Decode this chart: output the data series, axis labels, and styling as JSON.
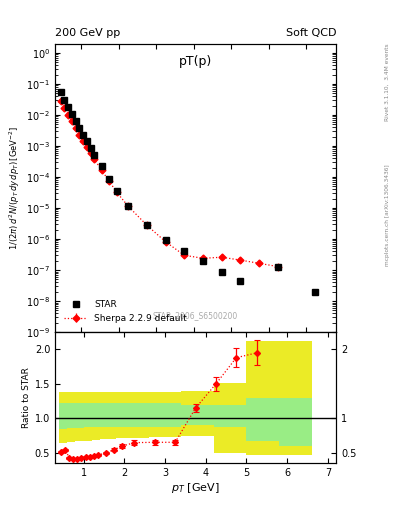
{
  "title_left": "200 GeV pp",
  "title_right": "Soft QCD",
  "plot_title": "pT(p)",
  "ylabel_main": "1/(2\\pi) d^2N/(p_T dy dp_T) [GeV^{-2}]",
  "ylabel_ratio": "Ratio to STAR",
  "xlabel": "p_T [GeV]",
  "watermark": "STAR_2006_S6500200",
  "star_x": [
    0.45,
    0.55,
    0.65,
    0.75,
    0.85,
    0.95,
    1.05,
    1.15,
    1.25,
    1.35,
    1.55,
    1.75,
    1.95,
    2.25,
    2.75,
    3.25,
    3.75,
    4.25,
    4.75,
    5.25,
    6.25,
    7.25
  ],
  "star_y": [
    0.055,
    0.03,
    0.018,
    0.011,
    0.0065,
    0.0038,
    0.0023,
    0.0014,
    0.00085,
    0.00052,
    0.00022,
    8.5e-05,
    3.5e-05,
    1.2e-05,
    2.8e-06,
    9.5e-07,
    4.2e-07,
    1.9e-07,
    9e-08,
    4.5e-08,
    1.3e-07,
    2e-08
  ],
  "sherpa_x": [
    0.45,
    0.55,
    0.65,
    0.75,
    0.85,
    0.95,
    1.05,
    1.15,
    1.25,
    1.35,
    1.55,
    1.75,
    1.95,
    2.25,
    2.75,
    3.25,
    3.75,
    4.25,
    4.75,
    5.25,
    5.75,
    6.25
  ],
  "sherpa_y": [
    0.028,
    0.017,
    0.01,
    0.0062,
    0.0038,
    0.0023,
    0.00145,
    0.00092,
    0.00058,
    0.00037,
    0.000162,
    7.2e-05,
    3.2e-05,
    1.15e-05,
    2.8e-06,
    8.2e-07,
    3e-07,
    2.4e-07,
    2.6e-07,
    2.1e-07,
    1.65e-07,
    1.3e-07
  ],
  "sherpa_yerr_lo": [
    0.001,
    0.0007,
    0.0004,
    0.00025,
    0.00015,
    0.0001,
    6e-05,
    4e-05,
    2.5e-05,
    1.6e-05,
    7e-06,
    3e-06,
    1.3e-06,
    5e-07,
    1.2e-07,
    4e-08,
    1.8e-08,
    2.2e-08,
    2.8e-08,
    2.5e-08,
    2e-08,
    1.5e-08
  ],
  "sherpa_yerr_hi": [
    0.001,
    0.0007,
    0.0004,
    0.00025,
    0.00015,
    0.0001,
    6e-05,
    4e-05,
    2.5e-05,
    1.6e-05,
    7e-06,
    3e-06,
    1.3e-06,
    5e-07,
    1.2e-07,
    4e-08,
    1.8e-08,
    2.2e-08,
    2.8e-08,
    2.5e-08,
    2e-08,
    1.5e-08
  ],
  "ratio_x": [
    0.45,
    0.55,
    0.65,
    0.75,
    0.85,
    0.95,
    1.05,
    1.15,
    1.25,
    1.35,
    1.55,
    1.75,
    1.95,
    2.25,
    2.75,
    3.25,
    3.75,
    4.25,
    4.75,
    5.25
  ],
  "ratio_y": [
    0.51,
    0.55,
    0.43,
    0.42,
    0.42,
    0.43,
    0.44,
    0.44,
    0.46,
    0.47,
    0.5,
    0.55,
    0.6,
    0.65,
    0.655,
    0.655,
    1.15,
    1.5,
    1.88,
    1.95
  ],
  "ratio_yerr": [
    0.015,
    0.015,
    0.015,
    0.012,
    0.012,
    0.012,
    0.012,
    0.012,
    0.012,
    0.012,
    0.015,
    0.02,
    0.025,
    0.035,
    0.035,
    0.035,
    0.055,
    0.1,
    0.14,
    0.18
  ],
  "band_x_edges": [
    0.4,
    0.6,
    0.8,
    1.0,
    1.2,
    1.4,
    1.8,
    2.2,
    2.6,
    3.4,
    4.2,
    5.0,
    5.8,
    6.6
  ],
  "band_green_low": [
    0.85,
    0.86,
    0.86,
    0.87,
    0.87,
    0.87,
    0.87,
    0.87,
    0.88,
    0.9,
    0.88,
    0.68,
    0.6
  ],
  "band_green_high": [
    1.22,
    1.23,
    1.23,
    1.22,
    1.22,
    1.22,
    1.22,
    1.22,
    1.22,
    1.2,
    1.2,
    1.3,
    1.3
  ],
  "band_yellow_low": [
    0.65,
    0.66,
    0.67,
    0.68,
    0.69,
    0.7,
    0.72,
    0.72,
    0.73,
    0.75,
    0.5,
    0.47,
    0.47
  ],
  "band_yellow_high": [
    1.38,
    1.38,
    1.38,
    1.38,
    1.38,
    1.38,
    1.38,
    1.38,
    1.38,
    1.4,
    1.52,
    2.12,
    2.12
  ],
  "xlim_main": [
    0.3,
    7.8
  ],
  "ylim_main": [
    1e-09,
    2.0
  ],
  "xlim_ratio": [
    0.3,
    7.2
  ],
  "ylim_ratio": [
    0.35,
    2.25
  ]
}
